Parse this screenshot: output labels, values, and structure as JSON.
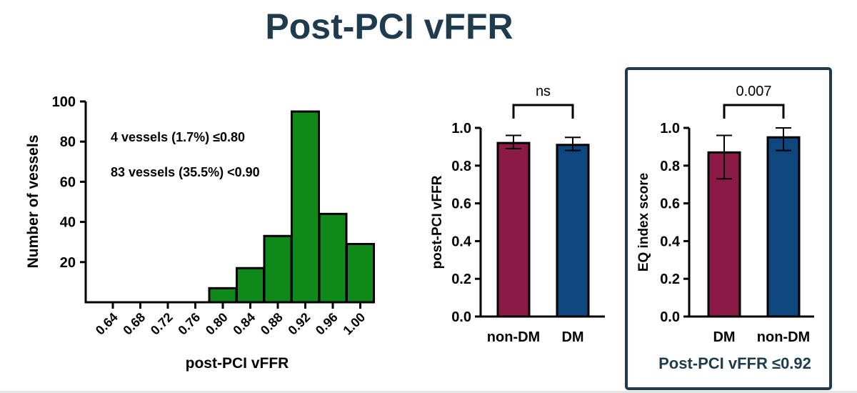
{
  "title": "Post-PCI vFFR",
  "colors": {
    "histogram_fill": "#0f8a1a",
    "dm_red": "#8c1a47",
    "nondm_blue": "#0e467e",
    "title": "#1f3c4f",
    "box_border": "#1f3c4f"
  },
  "chart_data": [
    {
      "type": "bar",
      "subtype": "histogram",
      "categories": [
        "0.64",
        "0.68",
        "0.72",
        "0.76",
        "0.80",
        "0.84",
        "0.88",
        "0.92",
        "0.96",
        "1.00"
      ],
      "values": [
        0,
        0,
        0,
        0,
        7,
        17,
        33,
        95,
        44,
        29
      ],
      "xlabel": "post-PCI vFFR",
      "ylabel": "Number of vessels",
      "ylim": [
        0,
        100
      ],
      "yticks": [
        "20",
        "40",
        "60",
        "80",
        "100"
      ],
      "annotations": [
        "4 vessels (1.7%) ≤0.80",
        "83 vessels (35.5%) <0.90"
      ]
    },
    {
      "type": "bar",
      "categories": [
        "non-DM",
        "DM"
      ],
      "values": [
        0.92,
        0.91
      ],
      "error_low": [
        0.89,
        0.88
      ],
      "error_high": [
        0.96,
        0.95
      ],
      "ylabel": "post-PCI vFFR",
      "ylim": [
        0,
        1.0
      ],
      "yticks": [
        "0.0",
        "0.2",
        "0.4",
        "0.6",
        "0.8",
        "1.0"
      ],
      "significance": "ns"
    },
    {
      "type": "bar",
      "categories": [
        "DM",
        "non-DM"
      ],
      "values": [
        0.87,
        0.95
      ],
      "error_low": [
        0.73,
        0.88
      ],
      "error_high": [
        0.96,
        1.0
      ],
      "ylabel": "EQ index score",
      "ylim": [
        0,
        1.0
      ],
      "yticks": [
        "0.0",
        "0.2",
        "0.4",
        "0.6",
        "0.8",
        "1.0"
      ],
      "significance": "0.007",
      "caption": "Post-PCI vFFR ≤0.92"
    }
  ]
}
